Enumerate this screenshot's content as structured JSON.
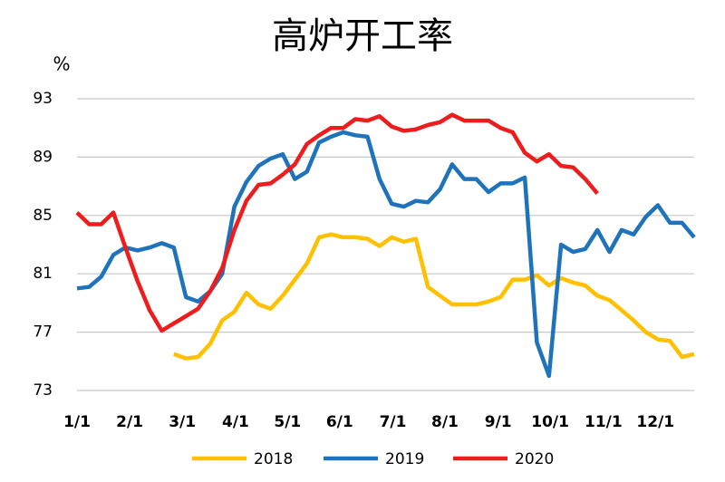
{
  "chart_data": {
    "type": "line",
    "title": "高炉开工率",
    "ylabel": "%",
    "x": [
      0,
      1,
      2,
      3,
      4,
      5,
      6,
      7,
      8,
      9,
      10,
      11,
      12,
      13,
      14,
      15,
      16,
      17,
      18,
      19,
      20,
      21,
      22,
      23,
      24,
      25,
      26,
      27,
      28,
      29,
      30,
      31,
      32,
      33,
      34,
      35,
      36,
      37,
      38,
      39,
      40,
      41,
      42,
      43,
      44,
      45,
      46,
      47,
      48,
      49,
      50,
      51
    ],
    "xlim": [
      0,
      51
    ],
    "xticks": [
      {
        "value": 0,
        "label": "1/1"
      },
      {
        "value": 4.35,
        "label": "2/1"
      },
      {
        "value": 8.7,
        "label": "3/1"
      },
      {
        "value": 13.1,
        "label": "4/1"
      },
      {
        "value": 17.4,
        "label": "5/1"
      },
      {
        "value": 21.7,
        "label": "6/1"
      },
      {
        "value": 26.1,
        "label": "7/1"
      },
      {
        "value": 30.4,
        "label": "8/1"
      },
      {
        "value": 34.8,
        "label": "9/1"
      },
      {
        "value": 39.1,
        "label": "10/1"
      },
      {
        "value": 43.5,
        "label": "11/1"
      },
      {
        "value": 47.8,
        "label": "12/1"
      }
    ],
    "ylim": [
      73,
      93
    ],
    "yticks": [
      73,
      77,
      81,
      85,
      89,
      93
    ],
    "grid": true,
    "series": [
      {
        "name": "2018",
        "color": "#FFC000",
        "values": [
          null,
          null,
          null,
          null,
          null,
          null,
          null,
          null,
          75.5,
          75.2,
          75.3,
          76.2,
          77.8,
          78.4,
          79.7,
          78.9,
          78.6,
          79.5,
          80.6,
          81.7,
          83.5,
          83.7,
          83.5,
          83.5,
          83.4,
          82.9,
          83.5,
          83.2,
          83.4,
          80.1,
          79.5,
          78.9,
          78.9,
          78.9,
          79.1,
          79.4,
          80.6,
          80.6,
          80.9,
          80.2,
          80.7,
          80.4,
          80.2,
          79.5,
          79.2,
          78.5,
          77.8,
          77.0,
          76.5,
          76.4,
          75.3,
          75.5
        ]
      },
      {
        "name": "2019",
        "color": "#1F73BA",
        "values": [
          80.0,
          80.1,
          80.8,
          82.3,
          82.8,
          82.6,
          82.8,
          83.1,
          82.8,
          79.4,
          79.1,
          79.8,
          81.0,
          85.6,
          87.3,
          88.4,
          88.9,
          89.2,
          87.5,
          88.0,
          90.0,
          90.4,
          90.7,
          90.5,
          90.4,
          87.5,
          85.8,
          85.6,
          86.0,
          85.9,
          86.8,
          88.5,
          87.5,
          87.5,
          86.6,
          87.2,
          87.2,
          87.6,
          76.3,
          74.0,
          83.0,
          82.5,
          82.7,
          84.0,
          82.5,
          84.0,
          83.7,
          84.9,
          85.7,
          84.5,
          84.5,
          83.5
        ]
      },
      {
        "name": "2020",
        "color": "#EE1C1C",
        "values": [
          85.2,
          84.4,
          84.4,
          85.2,
          82.8,
          80.5,
          78.5,
          77.1,
          77.6,
          78.1,
          78.6,
          79.8,
          81.4,
          84.0,
          86.0,
          87.1,
          87.2,
          87.8,
          88.5,
          89.9,
          90.5,
          91.0,
          91.0,
          91.6,
          91.5,
          91.8,
          91.1,
          90.8,
          90.9,
          91.2,
          91.4,
          91.9,
          91.5,
          91.5,
          91.5,
          91.0,
          90.7,
          89.3,
          88.7,
          89.2,
          88.4,
          88.3,
          87.5,
          86.5,
          null,
          null,
          null,
          null,
          null,
          null,
          null,
          null
        ]
      }
    ]
  }
}
